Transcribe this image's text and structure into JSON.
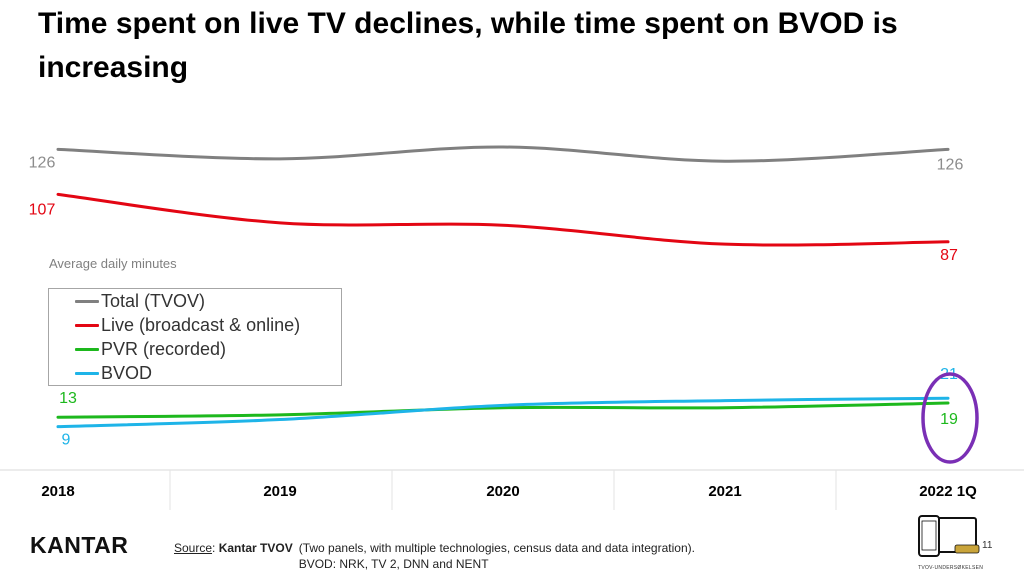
{
  "title": "Time spent on live TV declines, while time spent on BVOD is increasing",
  "chart_note": "Average daily minutes",
  "colors": {
    "total": "#808080",
    "live": "#e30613",
    "pvr": "#1db81d",
    "bvod": "#1eb4e8",
    "highlight": "#7a2fb5"
  },
  "chart_data": {
    "type": "line",
    "title": "Time spent on live TV declines, while time spent on BVOD is increasing",
    "ylabel": "Average daily minutes",
    "categories": [
      "2018",
      "2019",
      "2020",
      "2021",
      "2022 1Q"
    ],
    "series": [
      {
        "key": "total",
        "name": "Total (TVOV)",
        "values": [
          126,
          122,
          127,
          121,
          126
        ],
        "labels": [
          "126",
          "",
          "",
          "",
          "126"
        ]
      },
      {
        "key": "live",
        "name": "Live (broadcast & online)",
        "values": [
          107,
          95,
          94,
          86,
          87
        ],
        "labels": [
          "107",
          "",
          "",
          "",
          "87"
        ]
      },
      {
        "key": "pvr",
        "name": "PVR (recorded)",
        "values": [
          13,
          14,
          17,
          17,
          19
        ],
        "labels": [
          "13",
          "",
          "",
          "",
          "19"
        ]
      },
      {
        "key": "bvod",
        "name": "BVOD",
        "values": [
          9,
          12,
          18,
          20,
          21
        ],
        "labels": [
          "9",
          "",
          "",
          "",
          "21"
        ]
      }
    ],
    "legend": "left-middle",
    "highlight_category": "2022 1Q"
  },
  "legend": [
    {
      "key": "total",
      "label": "Total (TVOV)"
    },
    {
      "key": "live",
      "label": "Live (broadcast & online)"
    },
    {
      "key": "pvr",
      "label": "PVR (recorded)"
    },
    {
      "key": "bvod",
      "label": "BVOD"
    }
  ],
  "footer": {
    "source_label": "Source",
    "source_name": "Kantar TVOV",
    "source_line1": "(Two panels, with multiple technologies, census data and data integration).",
    "source_line2": "BVOD: NRK, TV 2, DNN and NENT",
    "logo": "KANTAR",
    "page_number": "11",
    "device_caption": "TVOV-UNDERSØKELSEN"
  }
}
